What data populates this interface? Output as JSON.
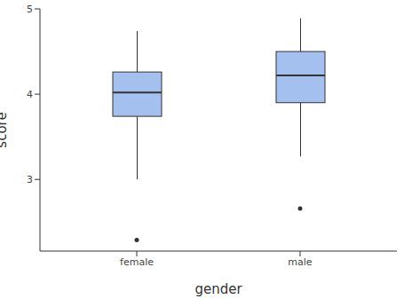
{
  "chart_data": {
    "type": "box",
    "x_label": "gender",
    "y_label": "score",
    "categories": [
      "female",
      "male"
    ],
    "boxes": [
      {
        "min": 3.0,
        "q1": 3.74,
        "median": 4.02,
        "q3": 4.26,
        "max": 4.74,
        "outliers": [
          2.29
        ]
      },
      {
        "min": 3.27,
        "q1": 3.9,
        "median": 4.22,
        "q3": 4.5,
        "max": 4.89,
        "outliers": [
          2.66
        ]
      }
    ],
    "color": "#a4c0ef",
    "ylim": [
      2.16,
      5
    ],
    "yticks": [
      3,
      4,
      5
    ],
    "grid": false
  }
}
